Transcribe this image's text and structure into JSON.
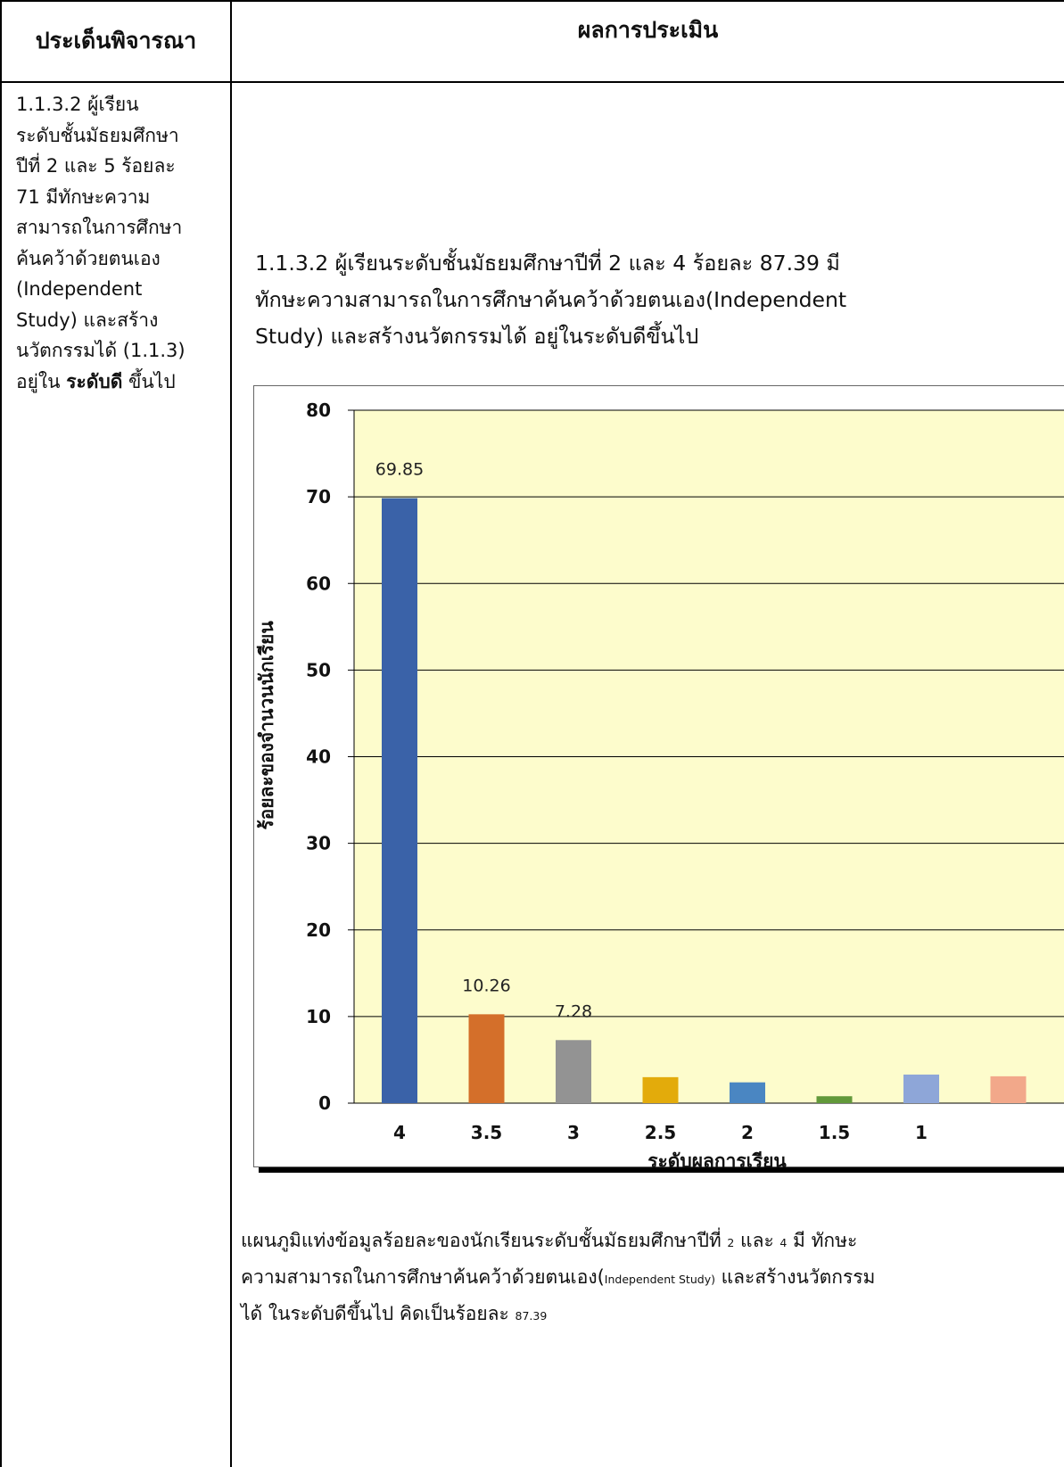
{
  "table": {
    "header_left": "ประเด็นพิจารณา",
    "header_right": "ผลการประเมิน"
  },
  "left_column": {
    "lines": [
      "1.1.3.2 ผู้เรียน",
      "ระดับชั้นมัธยมศึกษา",
      "ปีที่ 2 และ 5 ร้อยละ",
      "71 มีทักษะความ",
      "สามารถในการศึกษา",
      "ค้นคว้าด้วยตนเอง",
      "(Independent",
      "Study) และสร้าง",
      "นวัตกรรมได้ (1.1.3)"
    ],
    "last_line_prefix": "อยู่ใน ",
    "last_line_bold": "ระดับดี",
    "last_line_suffix": " ขึ้นไป"
  },
  "right_column": {
    "intro_lines": [
      "1.1.3.2 ผู้เรียนระดับชั้นมัธยมศึกษาปีที่ 2 และ 4 ร้อยละ 87.39  มี",
      "ทักษะความสามารถในการศึกษาค้นคว้าด้วยตนเอง(Independent",
      "Study) และสร้างนวัตกรรมได้ อยู่ในระดับดีขึ้นไป"
    ],
    "caption": {
      "line1_text": "แผนภูมิแท่งข้อมูลร้อยละของนักเรียนระดับชั้นมัธยมศึกษาปีที่ ",
      "line1_num1": "2",
      "line1_mid": " และ ",
      "line1_num2": "4",
      "line1_end": " มี ทักษะ",
      "line2_text": "ความสามารถในการศึกษาค้นคว้าด้วยตนเอง(",
      "line2_small": "Independent Study)",
      "line2_end": " และสร้างนวัตกรรม",
      "line3_text": "ได้ ในระดับดีขึ้นไป คิดเป็นร้อยละ ",
      "line3_small": "87.39"
    }
  },
  "chart_data": {
    "type": "bar",
    "categories": [
      "4",
      "3.5",
      "3",
      "2.5",
      "2",
      "1.5",
      "1",
      ""
    ],
    "values": [
      69.85,
      10.26,
      7.28,
      3.0,
      2.4,
      0.8,
      3.3,
      3.1
    ],
    "data_labels": [
      "69.85",
      "10.26",
      "7.28",
      "",
      "",
      "",
      "",
      ""
    ],
    "colors": [
      "#3a62a8",
      "#d46f2a",
      "#939393",
      "#e3ab0b",
      "#4a86c2",
      "#62993a",
      "#8ea6d8",
      "#f2a88a"
    ],
    "xlabel": "ระดับผลการเรียน",
    "ylabel": "ร้อยละของจำนวนนักเรียน",
    "ylim": [
      0,
      80
    ],
    "yticks": [
      "0",
      "10",
      "20",
      "30",
      "40",
      "50",
      "60",
      "70",
      "80"
    ],
    "grid": true,
    "plot_background": "#fdfccc"
  }
}
